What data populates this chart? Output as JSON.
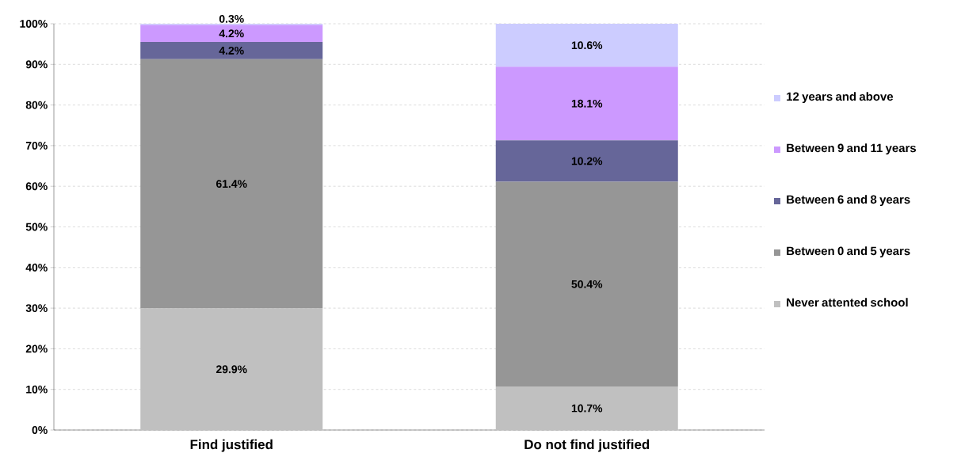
{
  "chart_data": {
    "type": "bar",
    "stacked": true,
    "categories": [
      "Find justified",
      "Do not find justified"
    ],
    "series": [
      {
        "name": "Never attented school",
        "color": "#c0c0c0",
        "values": [
          29.9,
          10.7
        ],
        "value_labels": [
          "29.9%",
          "10.7%"
        ]
      },
      {
        "name": "Between 0 and 5 years",
        "color": "#969696",
        "values": [
          61.4,
          50.4
        ],
        "value_labels": [
          "61.4%",
          "50.4%"
        ]
      },
      {
        "name": "Between 6 and 8 years",
        "color": "#666699",
        "values": [
          4.2,
          10.2
        ],
        "value_labels": [
          "4.2%",
          "10.2%"
        ]
      },
      {
        "name": "Between 9 and 11 years",
        "color": "#cc99ff",
        "values": [
          4.2,
          18.1
        ],
        "value_labels": [
          "4.2%",
          "18.1%"
        ]
      },
      {
        "name": "12 years and above",
        "color": "#ccccff",
        "values": [
          0.3,
          10.6
        ],
        "value_labels": [
          "0.3%",
          "10.6%"
        ]
      }
    ],
    "ylim": [
      0,
      100
    ],
    "yticks": [
      {
        "value": 0,
        "label": "0%"
      },
      {
        "value": 10,
        "label": "10%"
      },
      {
        "value": 20,
        "label": "20%"
      },
      {
        "value": 30,
        "label": "30%"
      },
      {
        "value": 40,
        "label": "40%"
      },
      {
        "value": 50,
        "label": "50%"
      },
      {
        "value": 60,
        "label": "60%"
      },
      {
        "value": 70,
        "label": "70%"
      },
      {
        "value": 80,
        "label": "80%"
      },
      {
        "value": 90,
        "label": "90%"
      },
      {
        "value": 100,
        "label": "100%"
      }
    ],
    "grid": "y",
    "legend": "right"
  }
}
